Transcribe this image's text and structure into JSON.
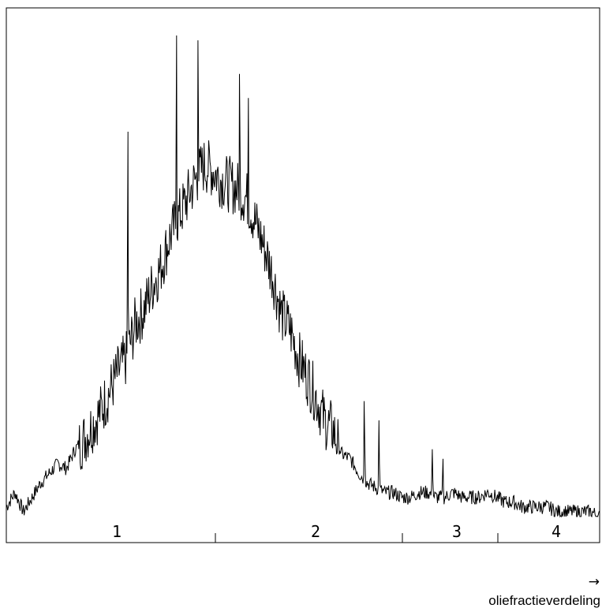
{
  "chart_data": {
    "type": "line",
    "title": "",
    "xlabel": "oliefractieverdeling",
    "xlabel_arrow": "→",
    "ylabel": "",
    "grid": false,
    "legend": "none",
    "line_color": "#000000",
    "regions": [
      {
        "label": "1"
      },
      {
        "label": "2"
      },
      {
        "label": "3"
      },
      {
        "label": "4"
      }
    ],
    "series": [
      {
        "values": [
          0.02,
          0.05,
          0.01,
          0.04,
          0.07,
          0.09,
          0.11,
          0.1,
          0.14,
          0.16,
          0.19,
          0.22,
          0.26,
          0.3,
          0.33,
          0.4,
          0.43,
          0.48,
          0.52,
          0.58,
          0.62,
          0.66,
          0.7,
          0.73,
          0.72,
          0.7,
          0.69,
          0.68,
          0.66,
          0.61,
          0.56,
          0.5,
          0.42,
          0.39,
          0.33,
          0.29,
          0.25,
          0.2,
          0.18,
          0.13,
          0.12,
          0.09,
          0.07,
          0.06,
          0.05,
          0.05,
          0.04,
          0.04,
          0.05,
          0.05,
          0.04,
          0.04,
          0.05,
          0.04,
          0.04,
          0.04,
          0.05,
          0.04,
          0.03,
          0.03,
          0.02,
          0.02,
          0.02,
          0.02,
          0.01,
          0.01,
          0.01,
          0.01,
          0.01,
          0.0
        ],
        "peaks": [
          {
            "x": 0.205,
            "y": 0.8
          },
          {
            "x": 0.287,
            "y": 1.0
          },
          {
            "x": 0.323,
            "y": 0.99
          },
          {
            "x": 0.393,
            "y": 0.92
          },
          {
            "x": 0.408,
            "y": 0.87
          },
          {
            "x": 0.511,
            "y": 0.32
          },
          {
            "x": 0.603,
            "y": 0.24
          },
          {
            "x": 0.628,
            "y": 0.2
          },
          {
            "x": 0.718,
            "y": 0.14
          },
          {
            "x": 0.736,
            "y": 0.12
          }
        ]
      }
    ]
  }
}
